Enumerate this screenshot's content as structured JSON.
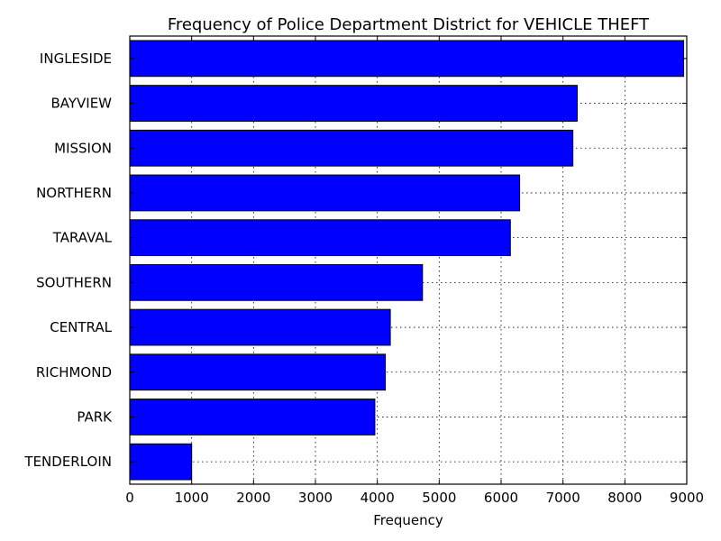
{
  "chart_data": {
    "type": "bar",
    "orientation": "horizontal",
    "title": "Frequency of Police Department District for VEHICLE THEFT",
    "xlabel": "Frequency",
    "ylabel": "",
    "categories": [
      "INGLESIDE",
      "BAYVIEW",
      "MISSION",
      "NORTHERN",
      "TARAVAL",
      "SOUTHERN",
      "CENTRAL",
      "RICHMOND",
      "PARK",
      "TENDERLOIN"
    ],
    "values": [
      8950,
      7230,
      7160,
      6300,
      6150,
      4730,
      4210,
      4130,
      3960,
      1000
    ],
    "xlim": [
      0,
      9000
    ],
    "xticks": [
      0,
      1000,
      2000,
      3000,
      4000,
      5000,
      6000,
      7000,
      8000,
      9000
    ],
    "xtick_labels": [
      "0",
      "1000",
      "2000",
      "3000",
      "4000",
      "5000",
      "6000",
      "7000",
      "8000",
      "9000"
    ],
    "grid": true,
    "bar_color": "#0000ff",
    "edge_color": "#000000"
  }
}
